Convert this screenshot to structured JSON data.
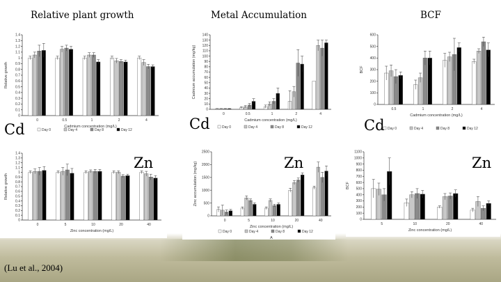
{
  "headers": {
    "relative_growth": "Relative plant growth",
    "metal_accumulation": "Metal Accumulation",
    "bcf": "BCF"
  },
  "metal_labels": {
    "cd": "Cd",
    "zn": "Zn"
  },
  "citation": "(Lu et al., 2004)",
  "colors": {
    "day0": "#ffffff",
    "day4": "#c8c8c8",
    "day8": "#8a8a8a",
    "day12": "#000000"
  },
  "chart_data": [
    {
      "id": "cd-growth",
      "type": "bar",
      "xlabel": "Cadmium concentration (mg/L)",
      "ylabel": "Relative growth",
      "ylim": [
        0,
        1.4
      ],
      "yticks": [
        "0",
        "0.1",
        "0.2",
        "0.3",
        "0.4",
        "0.5",
        "0.6",
        "0.7",
        "0.8",
        "0.9",
        "1",
        "1.1",
        "1.2",
        "1.3",
        "1.4"
      ],
      "categories": [
        "0",
        "0.5",
        "1",
        "2",
        "4"
      ],
      "series": [
        {
          "name": "Day 0",
          "values": [
            1.0,
            1.0,
            1.0,
            1.0,
            1.0
          ],
          "err": [
            0.03,
            0.03,
            0.03,
            0.03,
            0.03
          ]
        },
        {
          "name": "Day 4",
          "values": [
            1.05,
            1.15,
            1.05,
            0.95,
            0.92
          ],
          "err": [
            0.05,
            0.05,
            0.04,
            0.04,
            0.05
          ]
        },
        {
          "name": "Day 8",
          "values": [
            1.12,
            1.17,
            1.05,
            0.94,
            0.85
          ],
          "err": [
            0.1,
            0.05,
            0.04,
            0.03,
            0.04
          ]
        },
        {
          "name": "Day 12",
          "values": [
            1.13,
            1.15,
            0.93,
            0.93,
            0.85
          ],
          "err": [
            0.12,
            0.05,
            0.04,
            0.03,
            0.03
          ]
        }
      ],
      "legend": [
        "Day 0",
        "Day 4",
        "Day 8",
        "Day 12"
      ]
    },
    {
      "id": "cd-accum",
      "type": "bar",
      "xlabel": "Cadmium concentration (mg/L)",
      "ylabel": "Cadmium accumulation (mg/kg)",
      "ylim": [
        0,
        140
      ],
      "yticks": [
        "0",
        "10",
        "20",
        "30",
        "40",
        "50",
        "60",
        "70",
        "80",
        "90",
        "100",
        "110",
        "120",
        "130",
        "140"
      ],
      "categories": [
        "0",
        "0.5",
        "1",
        "2",
        "4"
      ],
      "series": [
        {
          "name": "Day 0",
          "values": [
            1,
            3,
            5,
            15,
            53
          ],
          "err": [
            0.5,
            2,
            3,
            20,
            0
          ]
        },
        {
          "name": "Day 4",
          "values": [
            1,
            5,
            10,
            33,
            120
          ],
          "err": [
            0.5,
            2,
            4,
            10,
            10
          ]
        },
        {
          "name": "Day 8",
          "values": [
            1,
            8,
            15,
            87,
            115
          ],
          "err": [
            0.5,
            3,
            5,
            25,
            15
          ]
        },
        {
          "name": "Day 12",
          "values": [
            1,
            15,
            30,
            85,
            125
          ],
          "err": [
            0.5,
            5,
            10,
            15,
            5
          ]
        }
      ],
      "legend": [
        "Day 0",
        "Day 4",
        "Day 8",
        "Day 12"
      ]
    },
    {
      "id": "cd-bcf",
      "type": "bar",
      "xlabel": "Cadmium concentration (mg/L)",
      "ylabel": "BCF",
      "ylim": [
        0,
        600
      ],
      "yticks": [
        "0",
        "100",
        "200",
        "300",
        "400",
        "500",
        "600"
      ],
      "categories": [
        "0.5",
        "1",
        "2",
        "4"
      ],
      "series": [
        {
          "name": "Day 0",
          "values": [
            270,
            170,
            380,
            370
          ],
          "err": [
            60,
            40,
            60,
            20
          ]
        },
        {
          "name": "Day 4",
          "values": [
            290,
            230,
            410,
            460
          ],
          "err": [
            50,
            40,
            40,
            20
          ]
        },
        {
          "name": "Day 8",
          "values": [
            240,
            400,
            430,
            540
          ],
          "err": [
            60,
            60,
            140,
            40
          ]
        },
        {
          "name": "Day 12",
          "values": [
            250,
            400,
            490,
            470
          ],
          "err": [
            30,
            60,
            40,
            60
          ]
        }
      ],
      "legend": [
        "Day 0",
        "Day 4",
        "Day 8",
        "Day 12"
      ]
    },
    {
      "id": "zn-growth",
      "type": "bar",
      "xlabel": "Zinc concentration (mg/L)",
      "ylabel": "Relative growth",
      "ylim": [
        0,
        1.4
      ],
      "yticks": [
        "0",
        "0.1",
        "0.2",
        "0.3",
        "0.4",
        "0.5",
        "0.6",
        "0.7",
        "0.8",
        "0.9",
        "1",
        "1.1",
        "1.2",
        "1.3",
        "1.4"
      ],
      "categories": [
        "0",
        "5",
        "10",
        "20",
        "40"
      ],
      "series": [
        {
          "name": "Day 0",
          "values": [
            1.0,
            1.0,
            1.0,
            1.0,
            1.0
          ],
          "err": [
            0.03,
            0.03,
            0.03,
            0.03,
            0.03
          ]
        },
        {
          "name": "Day 4",
          "values": [
            1.02,
            1.02,
            1.02,
            1.0,
            0.97
          ],
          "err": [
            0.05,
            0.08,
            0.03,
            0.03,
            0.05
          ]
        },
        {
          "name": "Day 8",
          "values": [
            1.02,
            1.05,
            1.02,
            0.92,
            0.9
          ],
          "err": [
            0.08,
            0.12,
            0.04,
            0.03,
            0.06
          ]
        },
        {
          "name": "Day 12",
          "values": [
            1.04,
            0.98,
            1.02,
            0.93,
            0.88
          ],
          "err": [
            0.08,
            0.1,
            0.04,
            0.03,
            0.05
          ]
        }
      ],
      "legend": []
    },
    {
      "id": "zn-accum",
      "type": "bar",
      "xlabel": "Zinc concentration (mg/L)",
      "ylabel": "Zinc accumulation (mg/kg)",
      "ylim": [
        0,
        2500
      ],
      "yticks": [
        "0",
        "500",
        "1000",
        "1500",
        "2000",
        "2500"
      ],
      "categories": [
        "0",
        "5",
        "10",
        "20",
        "40"
      ],
      "series": [
        {
          "name": "Day 0",
          "values": [
            250,
            300,
            300,
            1000,
            1100
          ],
          "err": [
            100,
            50,
            50,
            80,
            60
          ]
        },
        {
          "name": "Day 4",
          "values": [
            220,
            700,
            600,
            1300,
            1900
          ],
          "err": [
            200,
            80,
            60,
            80,
            200
          ]
        },
        {
          "name": "Day 8",
          "values": [
            150,
            600,
            400,
            1400,
            1500
          ],
          "err": [
            80,
            60,
            50,
            80,
            200
          ]
        },
        {
          "name": "Day 12",
          "values": [
            200,
            450,
            450,
            1600,
            1750
          ],
          "err": [
            50,
            60,
            60,
            80,
            200
          ]
        }
      ],
      "legend": [
        "Day 0",
        "Day 4",
        "Day 8",
        "Day 12"
      ],
      "caption": "A"
    },
    {
      "id": "zn-bcf",
      "type": "bar",
      "xlabel": "Zinc concentration (mg/L)",
      "ylabel": "BCF",
      "ylim": [
        0,
        1100
      ],
      "yticks": [
        "0",
        "100",
        "200",
        "300",
        "400",
        "500",
        "600",
        "700",
        "800",
        "900",
        "1000",
        "1100"
      ],
      "categories": [
        "5",
        "10",
        "20",
        "40"
      ],
      "series": [
        {
          "name": "Day 0",
          "values": [
            500,
            270,
            200,
            150
          ],
          "err": [
            150,
            60,
            20,
            30
          ]
        },
        {
          "name": "Day 4",
          "values": [
            490,
            400,
            370,
            290
          ],
          "err": [
            100,
            50,
            50,
            80
          ]
        },
        {
          "name": "Day 8",
          "values": [
            400,
            420,
            380,
            180
          ],
          "err": [
            100,
            80,
            50,
            40
          ]
        },
        {
          "name": "Day 12",
          "values": [
            780,
            410,
            420,
            260
          ],
          "err": [
            220,
            60,
            60,
            40
          ]
        }
      ],
      "legend": []
    }
  ]
}
